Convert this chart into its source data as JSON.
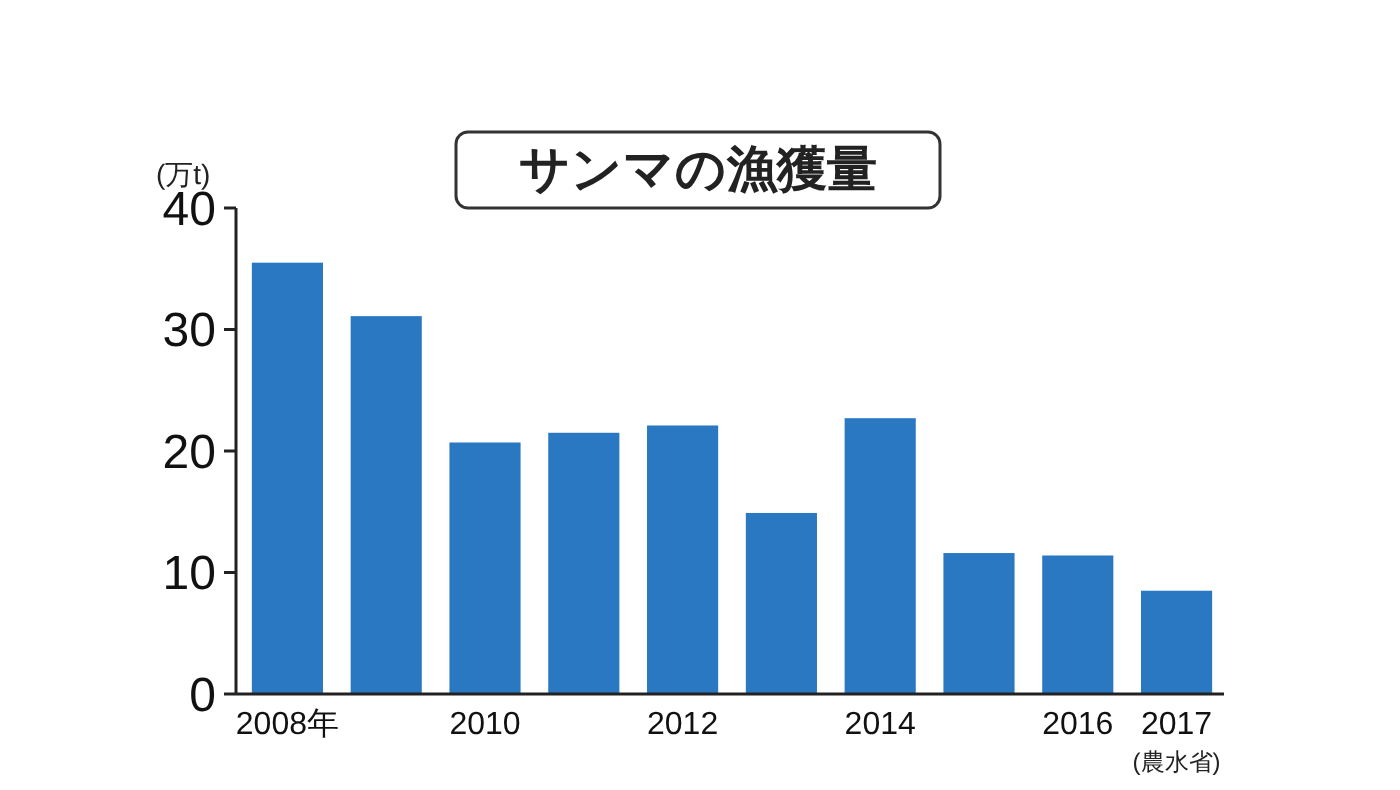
{
  "chart_data": {
    "type": "bar",
    "title": "サンマの漁獲量",
    "ylabel": "(万t)",
    "categories": [
      "2008年",
      null,
      "2010",
      null,
      "2012",
      null,
      "2014",
      null,
      "2016",
      "2017"
    ],
    "values": [
      35.5,
      31.1,
      20.7,
      21.5,
      22.1,
      14.9,
      22.7,
      11.6,
      11.4,
      8.5
    ],
    "color": "#2a78c2",
    "ylim": [
      0,
      40
    ],
    "yticks": [
      0,
      10,
      20,
      30,
      40
    ],
    "annotations": [
      "(農水省)"
    ]
  }
}
